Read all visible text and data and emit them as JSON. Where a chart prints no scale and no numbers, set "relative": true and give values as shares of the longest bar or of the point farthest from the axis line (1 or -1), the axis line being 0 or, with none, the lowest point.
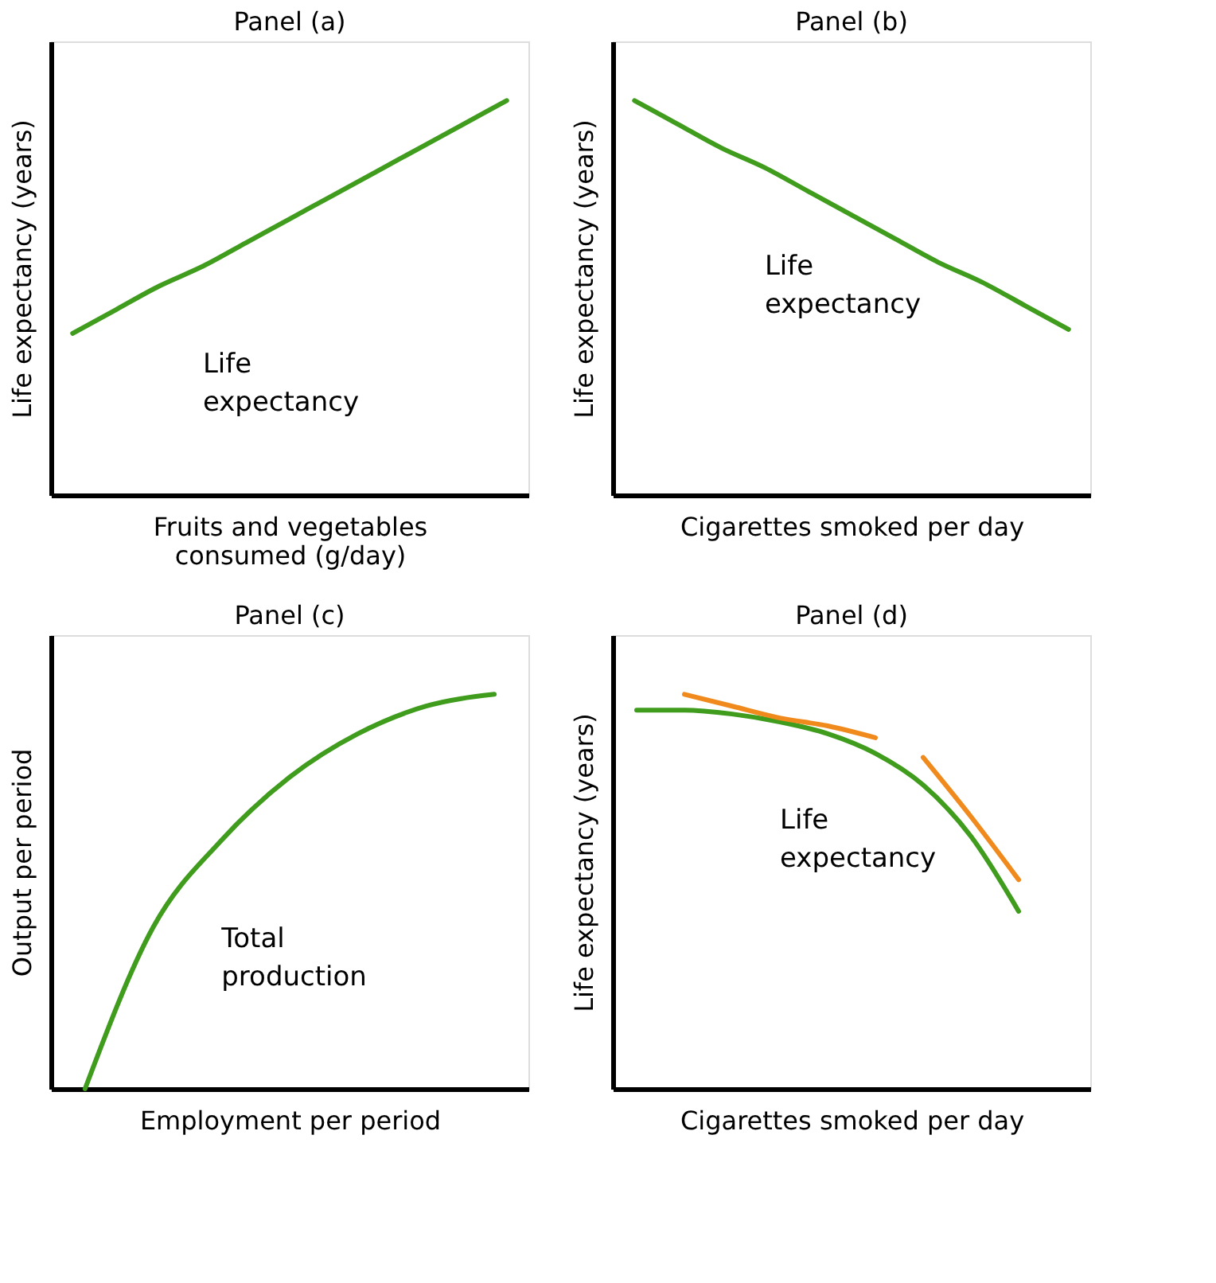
{
  "chart_data": [
    {
      "type": "line",
      "relative": true,
      "title": "Panel (a)",
      "xlabel": "Fruits and vegetables consumed (g/day)",
      "ylabel": "Life expectancy (years)",
      "categories": [
        null,
        null,
        null,
        null,
        null,
        null,
        null,
        null,
        null,
        null,
        null
      ],
      "series": [
        {
          "name": "Life expectancy",
          "color": "#3f9c1c",
          "values": [
            0.41,
            0.47,
            0.53,
            0.58,
            0.64,
            0.7,
            0.76,
            0.82,
            0.88,
            0.94,
            1
          ]
        }
      ]
    },
    {
      "type": "line",
      "relative": true,
      "title": "Panel (b)",
      "xlabel": "Cigarettes smoked per day",
      "ylabel": "Life expectancy (years)",
      "categories": [
        null,
        null,
        null,
        null,
        null,
        null,
        null,
        null,
        null,
        null,
        null
      ],
      "series": [
        {
          "name": "Life expectancy",
          "color": "#3f9c1c",
          "values": [
            1,
            0.94,
            0.88,
            0.83,
            0.77,
            0.71,
            0.65,
            0.59,
            0.54,
            0.48,
            0.42
          ]
        }
      ]
    },
    {
      "type": "line",
      "relative": true,
      "title": "Panel (c)",
      "xlabel": "Employment per period",
      "ylabel": "Output per period",
      "categories": [
        null,
        null,
        null,
        null,
        null,
        null,
        null
      ],
      "series": [
        {
          "name": "Total production",
          "color": "#3f9c1c",
          "values": [
            0,
            0.41,
            0.63,
            0.79,
            0.9,
            0.97,
            1
          ]
        }
      ]
    },
    {
      "type": "line",
      "relative": true,
      "title": "Panel (d)",
      "xlabel": "Cigarettes smoked per day",
      "ylabel": "Life expectancy (years)",
      "categories": [
        null,
        null,
        null,
        null,
        null,
        null,
        null,
        null,
        null,
        null
      ],
      "series": [
        {
          "name": "Life expectancy",
          "color": "#3f9c1c",
          "values": [
            0.96,
            0.96,
            0.95,
            0.93,
            0.9,
            0.85,
            0.77,
            0.64,
            0.45,
            null
          ]
        },
        {
          "color": "#f08a1c",
          "values": [
            null,
            1,
            0.97,
            0.94,
            0.92,
            0.89,
            null,
            null,
            null,
            null
          ]
        },
        {
          "color": "#f08a1c",
          "values": [
            null,
            null,
            null,
            null,
            null,
            null,
            0.84,
            0.69,
            0.53,
            null
          ]
        }
      ]
    }
  ]
}
